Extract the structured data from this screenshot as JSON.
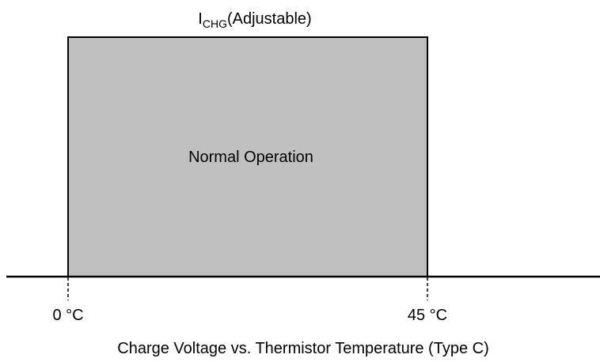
{
  "top_label": {
    "symbol": "I",
    "subscript": "CHG",
    "suffix": "(Adjustable)"
  },
  "region_label": "Normal Operation",
  "x_labels": [
    "0 °C",
    "45 °C"
  ],
  "caption": "Charge Voltage vs. Thermistor Temperature (Type C)"
}
